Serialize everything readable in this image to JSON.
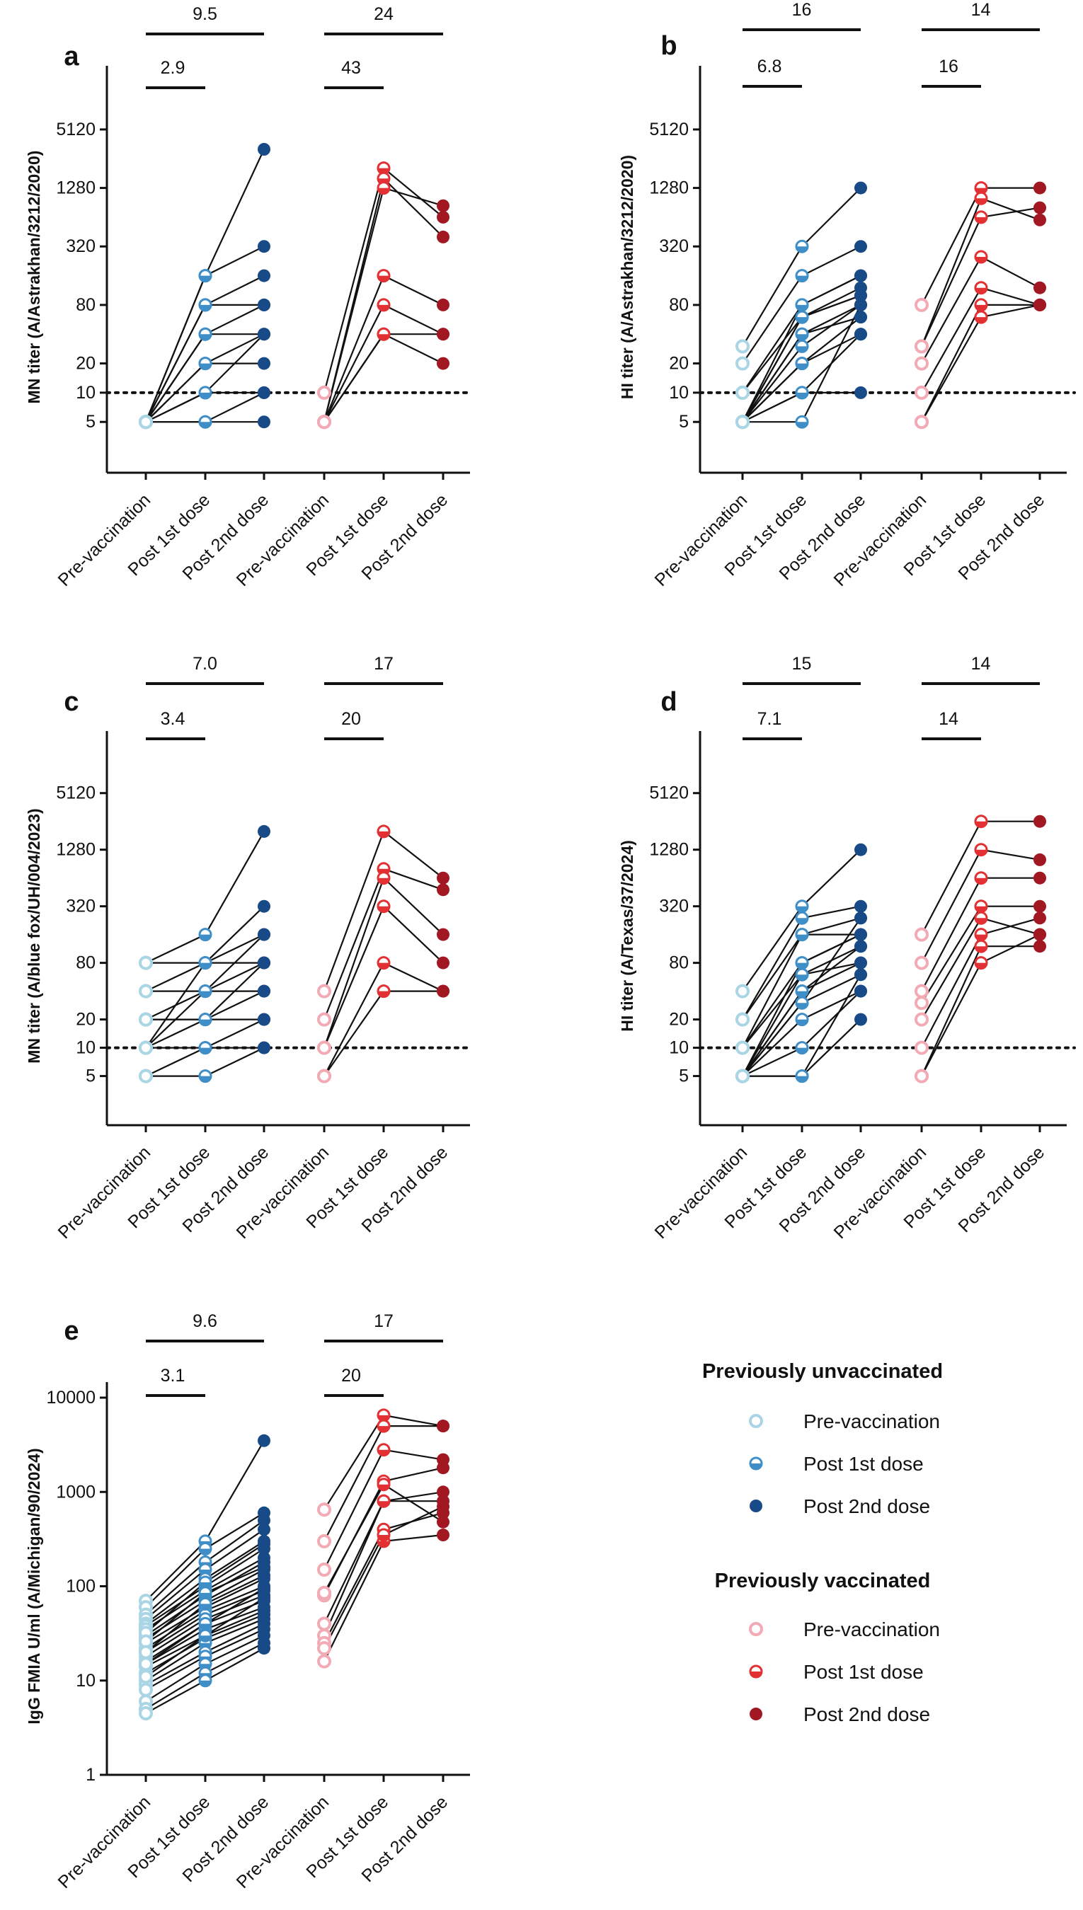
{
  "figure": {
    "legend": {
      "groups": [
        {
          "title": "Previously unvaccinated",
          "items": [
            {
              "label": "Pre-vaccination",
              "color": "#a9d5e5",
              "marker": "open"
            },
            {
              "label": "Post 1st dose",
              "color": "#3f8ec8",
              "marker": "half"
            },
            {
              "label": "Post 2nd dose",
              "color": "#174a87",
              "marker": "filled"
            }
          ]
        },
        {
          "title": "Previously vaccinated",
          "items": [
            {
              "label": "Pre-vaccination",
              "color": "#f2aab4",
              "marker": "open"
            },
            {
              "label": "Post 1st dose",
              "color": "#e23033",
              "marker": "half"
            },
            {
              "label": "Post 2nd dose",
              "color": "#a11822",
              "marker": "filled"
            }
          ]
        }
      ]
    }
  },
  "chart_data": [
    {
      "type": "line",
      "panel_label": "a",
      "ylabel": "MN titer (A/Astrakhan/3212/2020)",
      "yscale": "log",
      "ylim": [
        1.5,
        16000
      ],
      "yticks": [
        5,
        10,
        20,
        80,
        320,
        1280,
        5120
      ],
      "ytick_labels": [
        "5",
        "10",
        "20",
        "80",
        "320",
        "1280",
        "5120"
      ],
      "threshold": 10,
      "categories": [
        "Pre-vaccination",
        "Post 1st dose",
        "Post 2nd dose",
        "Pre-vaccination",
        "Post 1st dose",
        "Post 2nd dose"
      ],
      "fold_changes": [
        {
          "label": "2.9",
          "from": 0,
          "to": 1
        },
        {
          "label": "9.5",
          "from": 0,
          "to": 2
        },
        {
          "label": "43",
          "from": 3,
          "to": 4
        },
        {
          "label": "24",
          "from": 3,
          "to": 5
        }
      ],
      "series": [
        {
          "name": "Previously unvaccinated",
          "subjects": [
            [
              5,
              160,
              3200
            ],
            [
              5,
              160,
              320
            ],
            [
              5,
              80,
              160
            ],
            [
              5,
              80,
              80
            ],
            [
              5,
              40,
              80
            ],
            [
              5,
              40,
              40
            ],
            [
              5,
              20,
              40
            ],
            [
              5,
              20,
              20
            ],
            [
              5,
              10,
              10
            ],
            [
              5,
              10,
              40
            ],
            [
              5,
              5,
              5
            ],
            [
              5,
              5,
              10
            ]
          ]
        },
        {
          "name": "Previously vaccinated",
          "subjects": [
            [
              10,
              2048,
              640
            ],
            [
              5,
              1600,
              400
            ],
            [
              5,
              1280,
              840
            ],
            [
              5,
              160,
              80
            ],
            [
              5,
              80,
              40
            ],
            [
              5,
              40,
              40
            ],
            [
              5,
              40,
              20
            ]
          ]
        }
      ]
    },
    {
      "type": "line",
      "panel_label": "b",
      "ylabel": "HI titer (A/Astrakhan/3212/2020)",
      "yscale": "log",
      "ylim": [
        1.5,
        16000
      ],
      "yticks": [
        5,
        10,
        20,
        80,
        320,
        1280,
        5120
      ],
      "ytick_labels": [
        "5",
        "10",
        "20",
        "80",
        "320",
        "1280",
        "5120"
      ],
      "threshold": 10,
      "categories": [
        "Pre-vaccination",
        "Post 1st dose",
        "Post 2nd dose",
        "Pre-vaccination",
        "Post 1st dose",
        "Post 2nd dose"
      ],
      "fold_changes": [
        {
          "label": "6.8",
          "from": 0,
          "to": 1
        },
        {
          "label": "16",
          "from": 0,
          "to": 2
        },
        {
          "label": "16",
          "from": 3,
          "to": 4
        },
        {
          "label": "14",
          "from": 3,
          "to": 5
        }
      ],
      "series": [
        {
          "name": "Previously unvaccinated",
          "subjects": [
            [
              30,
              320,
              1280
            ],
            [
              20,
              160,
              320
            ],
            [
              10,
              80,
              160
            ],
            [
              10,
              60,
              120
            ],
            [
              5,
              60,
              100
            ],
            [
              5,
              40,
              80
            ],
            [
              5,
              40,
              60
            ],
            [
              5,
              30,
              80
            ],
            [
              5,
              20,
              60
            ],
            [
              5,
              20,
              40
            ],
            [
              5,
              10,
              40
            ],
            [
              5,
              10,
              10
            ],
            [
              5,
              5,
              80
            ],
            [
              5,
              80,
              160
            ],
            [
              5,
              60,
              100
            ]
          ]
        },
        {
          "name": "Previously vaccinated",
          "subjects": [
            [
              80,
              1280,
              1280
            ],
            [
              30,
              1000,
              600
            ],
            [
              30,
              640,
              800
            ],
            [
              20,
              250,
              120
            ],
            [
              10,
              120,
              80
            ],
            [
              5,
              80,
              80
            ],
            [
              5,
              60,
              80
            ]
          ]
        }
      ]
    },
    {
      "type": "line",
      "panel_label": "c",
      "ylabel": "MN titer (A/blue fox/UH/004/2023)",
      "yscale": "log",
      "ylim": [
        1.5,
        16000
      ],
      "yticks": [
        5,
        10,
        20,
        80,
        320,
        1280,
        5120
      ],
      "ytick_labels": [
        "5",
        "10",
        "20",
        "80",
        "320",
        "1280",
        "5120"
      ],
      "threshold": 10,
      "categories": [
        "Pre-vaccination",
        "Post 1st dose",
        "Post 2nd dose",
        "Pre-vaccination",
        "Post 1st dose",
        "Post 2nd dose"
      ],
      "fold_changes": [
        {
          "label": "3.4",
          "from": 0,
          "to": 1
        },
        {
          "label": "7.0",
          "from": 0,
          "to": 2
        },
        {
          "label": "20",
          "from": 3,
          "to": 4
        },
        {
          "label": "17",
          "from": 3,
          "to": 5
        }
      ],
      "series": [
        {
          "name": "Previously unvaccinated",
          "subjects": [
            [
              80,
              160,
              2000
            ],
            [
              80,
              80,
              320
            ],
            [
              40,
              80,
              160
            ],
            [
              40,
              40,
              80
            ],
            [
              20,
              40,
              40
            ],
            [
              20,
              20,
              80
            ],
            [
              20,
              20,
              20
            ],
            [
              10,
              40,
              160
            ],
            [
              10,
              20,
              40
            ],
            [
              10,
              10,
              10
            ],
            [
              10,
              80,
              80
            ],
            [
              5,
              10,
              20
            ],
            [
              5,
              5,
              10
            ]
          ]
        },
        {
          "name": "Previously vaccinated",
          "subjects": [
            [
              40,
              2000,
              640
            ],
            [
              20,
              800,
              480
            ],
            [
              10,
              640,
              160
            ],
            [
              10,
              320,
              80
            ],
            [
              5,
              80,
              40
            ],
            [
              5,
              40,
              40
            ]
          ]
        }
      ]
    },
    {
      "type": "line",
      "panel_label": "d",
      "ylabel": "HI titer (A/Texas/37/2024)",
      "yscale": "log",
      "ylim": [
        1.5,
        16000
      ],
      "yticks": [
        5,
        10,
        20,
        80,
        320,
        1280,
        5120
      ],
      "ytick_labels": [
        "5",
        "10",
        "20",
        "80",
        "320",
        "1280",
        "5120"
      ],
      "threshold": 10,
      "categories": [
        "Pre-vaccination",
        "Post 1st dose",
        "Post 2nd dose",
        "Pre-vaccination",
        "Post 1st dose",
        "Post 2nd dose"
      ],
      "fold_changes": [
        {
          "label": "7.1",
          "from": 0,
          "to": 1
        },
        {
          "label": "15",
          "from": 0,
          "to": 2
        },
        {
          "label": "14",
          "from": 3,
          "to": 4
        },
        {
          "label": "14",
          "from": 3,
          "to": 5
        }
      ],
      "series": [
        {
          "name": "Previously unvaccinated",
          "subjects": [
            [
              40,
              320,
              1280
            ],
            [
              20,
              240,
              320
            ],
            [
              20,
              160,
              160
            ],
            [
              10,
              160,
              240
            ],
            [
              10,
              80,
              160
            ],
            [
              10,
              60,
              120
            ],
            [
              5,
              60,
              80
            ],
            [
              5,
              40,
              80
            ],
            [
              5,
              30,
              60
            ],
            [
              5,
              20,
              40
            ],
            [
              5,
              10,
              40
            ],
            [
              5,
              5,
              20
            ],
            [
              5,
              5,
              60
            ],
            [
              5,
              80,
              160
            ],
            [
              5,
              40,
              120
            ],
            [
              5,
              30,
              240
            ]
          ]
        },
        {
          "name": "Previously vaccinated",
          "subjects": [
            [
              160,
              2560,
              2560
            ],
            [
              80,
              1280,
              1000
            ],
            [
              40,
              640,
              640
            ],
            [
              30,
              320,
              320
            ],
            [
              20,
              240,
              160
            ],
            [
              10,
              160,
              240
            ],
            [
              5,
              120,
              120
            ],
            [
              5,
              80,
              160
            ]
          ]
        }
      ]
    },
    {
      "type": "line",
      "panel_label": "e",
      "ylabel": "IgG FMIA U/ml (A/Michigan/90/2024)",
      "yscale": "log",
      "ylim": [
        1,
        10000
      ],
      "yticks": [
        1,
        10,
        100,
        1000,
        10000
      ],
      "ytick_labels": [
        "1",
        "10",
        "100",
        "1000",
        "10000"
      ],
      "threshold": null,
      "categories": [
        "Pre-vaccination",
        "Post 1st dose",
        "Post 2nd dose",
        "Pre-vaccination",
        "Post 1st dose",
        "Post 2nd dose"
      ],
      "fold_changes": [
        {
          "label": "3.1",
          "from": 0,
          "to": 1
        },
        {
          "label": "9.6",
          "from": 0,
          "to": 2
        },
        {
          "label": "20",
          "from": 3,
          "to": 4
        },
        {
          "label": "17",
          "from": 3,
          "to": 5
        }
      ],
      "series": [
        {
          "name": "Previously unvaccinated",
          "subjects": [
            [
              70,
              300,
              3500
            ],
            [
              60,
              250,
              600
            ],
            [
              50,
              180,
              500
            ],
            [
              45,
              150,
              400
            ],
            [
              40,
              120,
              300
            ],
            [
              38,
              100,
              250
            ],
            [
              35,
              90,
              200
            ],
            [
              30,
              80,
              180
            ],
            [
              28,
              70,
              150
            ],
            [
              25,
              60,
              120
            ],
            [
              22,
              55,
              100
            ],
            [
              20,
              50,
              90
            ],
            [
              18,
              45,
              80
            ],
            [
              16,
              40,
              70
            ],
            [
              15,
              35,
              60
            ],
            [
              14,
              30,
              55
            ],
            [
              12,
              28,
              50
            ],
            [
              10,
              25,
              45
            ],
            [
              9,
              20,
              40
            ],
            [
              8,
              18,
              35
            ],
            [
              6,
              15,
              30
            ],
            [
              5,
              12,
              25
            ],
            [
              4.5,
              10,
              22
            ],
            [
              32,
              110,
              280
            ],
            [
              26,
              85,
              160
            ],
            [
              20,
              65,
              130
            ],
            [
              15,
              40,
              95
            ],
            [
              11,
              30,
              75
            ]
          ]
        },
        {
          "name": "Previously vaccinated",
          "subjects": [
            [
              650,
              6500,
              5000
            ],
            [
              300,
              5000,
              5000
            ],
            [
              150,
              2800,
              2200
            ],
            [
              80,
              1300,
              1800
            ],
            [
              40,
              800,
              1000
            ],
            [
              30,
              800,
              800
            ],
            [
              25,
              400,
              600
            ],
            [
              16,
              300,
              350
            ],
            [
              85,
              1200,
              480
            ],
            [
              22,
              350,
              700
            ]
          ]
        }
      ]
    }
  ]
}
